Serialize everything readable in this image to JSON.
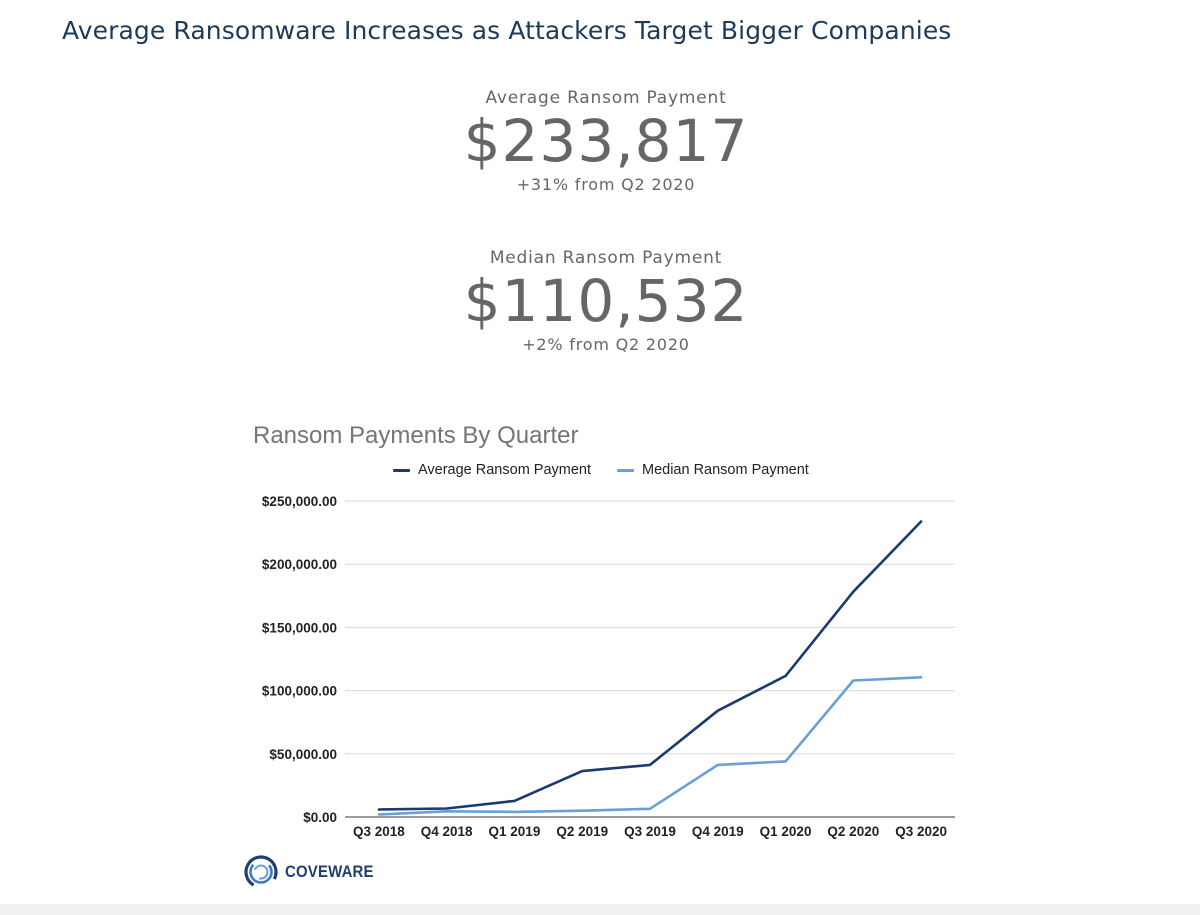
{
  "page": {
    "title": "Average Ransomware Increases as Attackers Target Bigger Companies"
  },
  "stats": {
    "average": {
      "label": "Average Ransom Payment",
      "value": "$233,817",
      "change": "+31% from Q2 2020"
    },
    "median": {
      "label": "Median Ransom Payment",
      "value": "$110,532",
      "change": "+2% from Q2 2020"
    }
  },
  "logo": {
    "text": "COVEWARE",
    "icon": "coveware-ring-logo"
  },
  "colors": {
    "average_series": "#1c3a6e",
    "median_series": "#6a9fd8",
    "title": "#1c3b5a",
    "stat_text": "#666666",
    "gridline": "#d9d9d9"
  },
  "chart_data": {
    "type": "line",
    "title": "Ransom Payments By Quarter",
    "xlabel": "",
    "ylabel": "",
    "categories": [
      "Q3 2018",
      "Q4 2018",
      "Q1 2019",
      "Q2 2019",
      "Q3 2019",
      "Q4 2019",
      "Q1 2020",
      "Q2 2020",
      "Q3 2020"
    ],
    "series": [
      {
        "name": "Average Ransom Payment",
        "values": [
          5973,
          6733,
          12762,
          36295,
          41198,
          84116,
          111605,
          178254,
          233817
        ]
      },
      {
        "name": "Median Ransom Payment",
        "values": [
          2000,
          4500,
          4000,
          5000,
          6500,
          41179,
          44021,
          108000,
          110532
        ]
      }
    ],
    "ylim": [
      0,
      250000
    ],
    "yticks": [
      0,
      50000,
      100000,
      150000,
      200000,
      250000
    ],
    "ytick_labels": [
      "$0.00",
      "$50,000.00",
      "$100,000.00",
      "$150,000.00",
      "$200,000.00",
      "$250,000.00"
    ],
    "grid": true,
    "legend_position": "top-center"
  }
}
